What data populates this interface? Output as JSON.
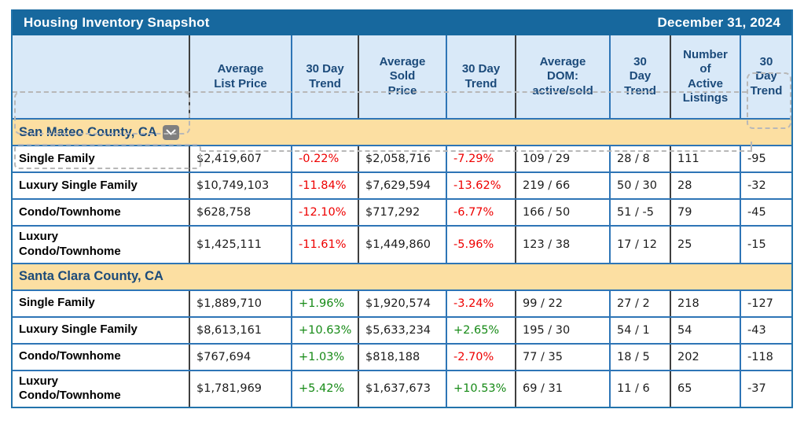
{
  "title_bar": {
    "title": "Housing Inventory Snapshot",
    "date": "December 31, 2024"
  },
  "table": {
    "columns": [
      "",
      "Average\nList Price",
      "30 Day\nTrend",
      "Average\nSold\nPrice",
      "30 Day\nTrend",
      "Average\nDOM:\nactive/sold",
      "30\nDay\nTrend",
      "Number\nof\nActive\nListings",
      "30\nDay\nTrend"
    ],
    "sections": [
      {
        "name": "San Mateo County, CA",
        "dropdown_icon": "chevron-down-icon",
        "rows": [
          {
            "label": "Single Family",
            "list_price": "$2,419,607",
            "list_trend": "-0.22%",
            "sold_price": "$2,058,716",
            "sold_trend": "-7.29%",
            "dom": "109 / 29",
            "dom_trend": "28 / 8",
            "active_listings": "111",
            "listings_trend": "-95"
          },
          {
            "label": "Luxury Single Family",
            "list_price": "$10,749,103",
            "list_trend": "-11.84%",
            "sold_price": "$7,629,594",
            "sold_trend": "-13.62%",
            "dom": "219 / 66",
            "dom_trend": "50 / 30",
            "active_listings": "28",
            "listings_trend": "-32"
          },
          {
            "label": "Condo/Townhome",
            "list_price": "$628,758",
            "list_trend": "-12.10%",
            "sold_price": "$717,292",
            "sold_trend": "-6.77%",
            "dom": "166 / 50",
            "dom_trend": "51 / -5",
            "active_listings": "79",
            "listings_trend": "-45"
          },
          {
            "label": "Luxury\nCondo/Townhome",
            "list_price": "$1,425,111",
            "list_trend": "-11.61%",
            "sold_price": "$1,449,860",
            "sold_trend": "-5.96%",
            "dom": "123 / 38",
            "dom_trend": "17 / 12",
            "active_listings": "25",
            "listings_trend": "-15"
          }
        ]
      },
      {
        "name": "Santa Clara County, CA",
        "rows": [
          {
            "label": "Single Family",
            "list_price": "$1,889,710",
            "list_trend": "+1.96%",
            "sold_price": "$1,920,574",
            "sold_trend": "-3.24%",
            "dom": "99 / 22",
            "dom_trend": "27 / 2",
            "active_listings": "218",
            "listings_trend": "-127"
          },
          {
            "label": "Luxury Single Family",
            "list_price": "$8,613,161",
            "list_trend": "+10.63%",
            "sold_price": "$5,633,234",
            "sold_trend": "+2.65%",
            "dom": "195 / 30",
            "dom_trend": "54 / 1",
            "active_listings": "54",
            "listings_trend": "-43"
          },
          {
            "label": "Condo/Townhome",
            "list_price": "$767,694",
            "list_trend": "+1.03%",
            "sold_price": "$818,188",
            "sold_trend": "-2.70%",
            "dom": "77 / 35",
            "dom_trend": "18 / 5",
            "active_listings": "202",
            "listings_trend": "-118"
          },
          {
            "label": "Luxury\nCondo/Townhome",
            "list_price": "$1,781,969",
            "list_trend": "+5.42%",
            "sold_price": "$1,637,673",
            "sold_trend": "+10.53%",
            "dom": "69 / 31",
            "dom_trend": "11 / 6",
            "active_listings": "65",
            "listings_trend": "-37"
          }
        ]
      }
    ]
  },
  "colors": {
    "title_bar_bg": "#17689e",
    "header_bg": "#d9e9f8",
    "section_bg": "#fcdfa2",
    "header_text": "#1b4a7a",
    "positive_trend": "#168a16",
    "negative_trend": "#ee0000",
    "row_border": "#2e75b6",
    "group_border": "#3f3f3f",
    "outer_border": "#2273ab"
  }
}
